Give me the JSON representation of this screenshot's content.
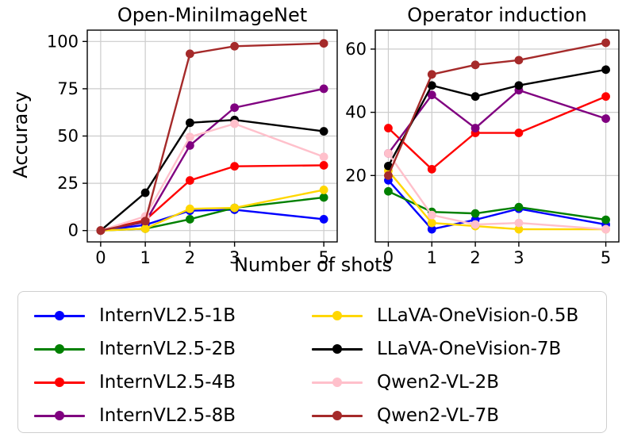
{
  "figure": {
    "xlabel": "Number of shots",
    "ylabel": "Accuracy",
    "background_color": "#ffffff",
    "grid_color": "#cccccc",
    "spine_color": "#000000",
    "text_color": "#000000"
  },
  "chart_data": [
    {
      "type": "line",
      "title": "Open-MiniImageNet",
      "xlabel": "Number of shots",
      "ylabel": "Accuracy",
      "x": [
        0,
        1,
        2,
        3,
        5
      ],
      "xticks": [
        "0",
        "1",
        "2",
        "3",
        "5"
      ],
      "yticks": [
        0,
        25,
        50,
        75,
        100
      ],
      "xlim": [
        -0.3,
        5.3
      ],
      "ylim": [
        -6,
        106
      ],
      "grid": true,
      "legend_position": "below-figure",
      "series": [
        {
          "name": "InternVL2.5-1B",
          "color": "#0000ff",
          "values": [
            0,
            3,
            10.5,
            11,
            6
          ]
        },
        {
          "name": "InternVL2.5-2B",
          "color": "#008000",
          "values": [
            0,
            1,
            6,
            12,
            17.5
          ]
        },
        {
          "name": "InternVL2.5-4B",
          "color": "#ff0000",
          "values": [
            0,
            5.5,
            26.5,
            34,
            34.5
          ]
        },
        {
          "name": "InternVL2.5-8B",
          "color": "#800080",
          "values": [
            0,
            4.5,
            45,
            65,
            75
          ]
        },
        {
          "name": "LLaVA-OneVision-0.5B",
          "color": "#ffd700",
          "values": [
            0,
            1,
            11.5,
            12,
            21.5
          ]
        },
        {
          "name": "LLaVA-OneVision-7B",
          "color": "#000000",
          "values": [
            0,
            20,
            57,
            58.5,
            52.5
          ]
        },
        {
          "name": "Qwen2-VL-2B",
          "color": "#ffc0cb",
          "values": [
            0,
            7.5,
            49.5,
            56.5,
            39
          ]
        },
        {
          "name": "Qwen2-VL-7B",
          "color": "#a52a2a",
          "values": [
            0,
            5,
            93.5,
            97.5,
            99
          ]
        }
      ]
    },
    {
      "type": "line",
      "title": "Operator induction",
      "xlabel": "Number of shots",
      "ylabel": "Accuracy",
      "x": [
        0,
        1,
        2,
        3,
        5
      ],
      "xticks": [
        "0",
        "1",
        "2",
        "3",
        "5"
      ],
      "yticks": [
        20,
        40,
        60
      ],
      "xlim": [
        -0.3,
        5.3
      ],
      "ylim": [
        -1,
        66
      ],
      "grid": true,
      "legend_position": "below-figure",
      "series": [
        {
          "name": "InternVL2.5-1B",
          "color": "#0000ff",
          "values": [
            18.5,
            3,
            6,
            9.5,
            4.5
          ]
        },
        {
          "name": "InternVL2.5-2B",
          "color": "#008000",
          "values": [
            15,
            8.5,
            8,
            10,
            6
          ]
        },
        {
          "name": "InternVL2.5-4B",
          "color": "#ff0000",
          "values": [
            35,
            22,
            33.5,
            33.5,
            45
          ]
        },
        {
          "name": "InternVL2.5-8B",
          "color": "#800080",
          "values": [
            27,
            45.5,
            35,
            47,
            38
          ]
        },
        {
          "name": "LLaVA-OneVision-0.5B",
          "color": "#ffd700",
          "values": [
            21.5,
            5,
            4,
            3,
            3
          ]
        },
        {
          "name": "LLaVA-OneVision-7B",
          "color": "#000000",
          "values": [
            23,
            48.5,
            45,
            48.5,
            53.5
          ]
        },
        {
          "name": "Qwen2-VL-2B",
          "color": "#ffc0cb",
          "values": [
            27,
            7.5,
            4.5,
            5,
            3
          ]
        },
        {
          "name": "Qwen2-VL-7B",
          "color": "#a52a2a",
          "values": [
            20,
            52,
            55,
            56.5,
            62
          ]
        }
      ]
    }
  ],
  "legend": {
    "columns": [
      [
        "InternVL2.5-1B",
        "InternVL2.5-2B",
        "InternVL2.5-4B",
        "InternVL2.5-8B"
      ],
      [
        "LLaVA-OneVision-0.5B",
        "LLaVA-OneVision-7B",
        "Qwen2-VL-2B",
        "Qwen2-VL-7B"
      ]
    ]
  }
}
